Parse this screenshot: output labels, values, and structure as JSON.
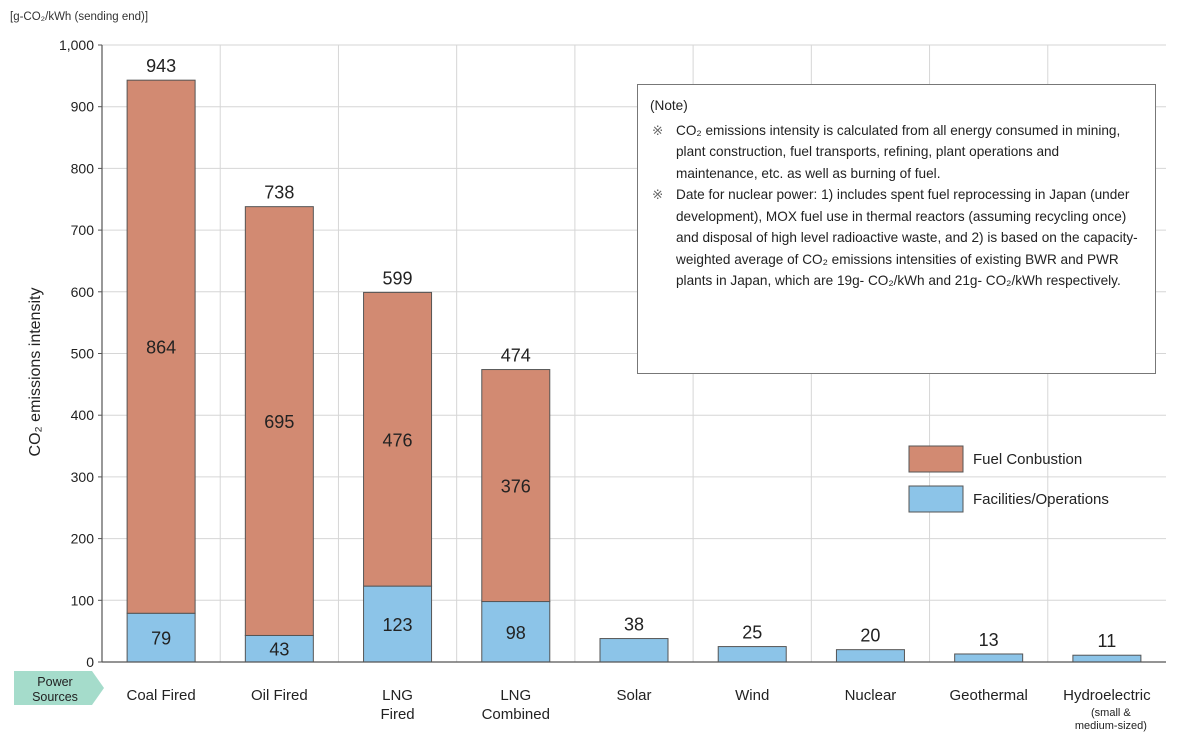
{
  "chart_data": {
    "type": "bar",
    "stacked": true,
    "unit_label": "[g-CO₂/kWh (sending end)]",
    "ylabel": "CO₂ emissions intensity",
    "ylim": [
      0,
      1000
    ],
    "yticks": [
      "0",
      "100",
      "200",
      "300",
      "400",
      "500",
      "600",
      "700",
      "800",
      "900",
      "1,000"
    ],
    "grid": true,
    "x_header": "Power Sources",
    "categories": [
      {
        "lines": [
          "Coal Fired"
        ],
        "small": []
      },
      {
        "lines": [
          "Oil Fired"
        ],
        "small": []
      },
      {
        "lines": [
          "LNG",
          "Fired"
        ],
        "small": []
      },
      {
        "lines": [
          "LNG",
          "Combined"
        ],
        "small": []
      },
      {
        "lines": [
          "Solar"
        ],
        "small": []
      },
      {
        "lines": [
          "Wind"
        ],
        "small": []
      },
      {
        "lines": [
          "Nuclear"
        ],
        "small": []
      },
      {
        "lines": [
          "Geothermal"
        ],
        "small": []
      },
      {
        "lines": [
          "Hydroelectric"
        ],
        "small": [
          "(small &",
          "medium-sized)"
        ]
      }
    ],
    "series": [
      {
        "name": "Facilities/Operations",
        "color": "#8cc4e8",
        "values": [
          79,
          43,
          123,
          98,
          38,
          25,
          20,
          13,
          11
        ]
      },
      {
        "name": "Fuel Conbustion",
        "color": "#d28a72",
        "values": [
          864,
          695,
          476,
          376,
          0,
          0,
          0,
          0,
          0
        ]
      }
    ],
    "totals": [
      943,
      738,
      599,
      474,
      38,
      25,
      20,
      13,
      11
    ],
    "legend": {
      "placement": "right",
      "items": [
        {
          "label": "Fuel Conbustion",
          "color": "#d28a72"
        },
        {
          "label": "Facilities/Operations",
          "color": "#8cc4e8"
        }
      ]
    }
  },
  "note": {
    "title": "(Note)",
    "mark": "※",
    "items": [
      "CO₂ emissions intensity is calculated from all energy consumed in mining, plant construction, fuel transports, refining, plant operations and maintenance, etc. as well as burning of fuel.",
      "Date for nuclear power: 1) includes spent fuel reprocessing in Japan (under development), MOX fuel use in thermal reactors (assuming recycling once) and disposal of high level radioactive waste, and 2) is based on the capacity-weighted average of CO₂ emissions intensities of existing BWR and PWR plants in Japan, which are 19g- CO₂/kWh and 21g- CO₂/kWh respectively."
    ]
  },
  "colors": {
    "axis": "#555555",
    "grid": "#d6d6d6",
    "header_fill": "#a5dccb",
    "bar_edge": "#555555"
  }
}
